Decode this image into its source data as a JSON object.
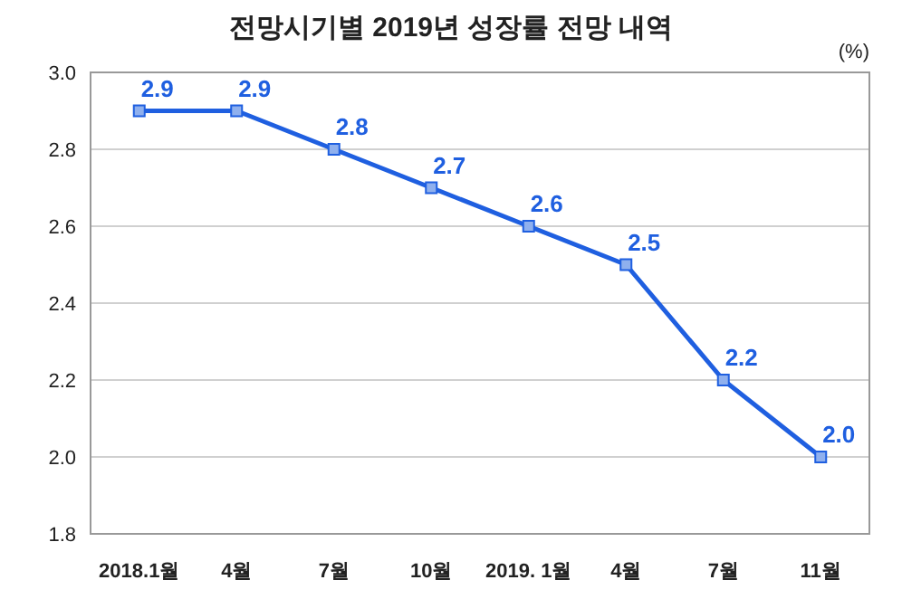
{
  "chart_data": {
    "type": "line",
    "title": "전망시기별 2019년 성장률 전망 내역",
    "ylabel": "(%)",
    "categories": [
      "2018.1월",
      "4월",
      "7월",
      "10월",
      "2019. 1월",
      "4월",
      "7월",
      "11월"
    ],
    "series": [
      {
        "color": "#1f5fe0",
        "values": [
          2.9,
          2.9,
          2.8,
          2.7,
          2.6,
          2.5,
          2.2,
          2.0
        ],
        "value_labels": [
          "2.9",
          "2.9",
          "2.8",
          "2.7",
          "2.6",
          "2.5",
          "2.2",
          "2.0"
        ]
      }
    ],
    "ylim": [
      1.8,
      3.0
    ],
    "yticks": [
      {
        "value": 1.8,
        "label": "1.8"
      },
      {
        "value": 2.0,
        "label": "2.0"
      },
      {
        "value": 2.2,
        "label": "2.2"
      },
      {
        "value": 2.4,
        "label": "2.4"
      },
      {
        "value": 2.6,
        "label": "2.6"
      },
      {
        "value": 2.8,
        "label": "2.8"
      },
      {
        "value": 3.0,
        "label": "3.0"
      }
    ],
    "grid": "y",
    "marker": "square",
    "line_style": "solid"
  }
}
